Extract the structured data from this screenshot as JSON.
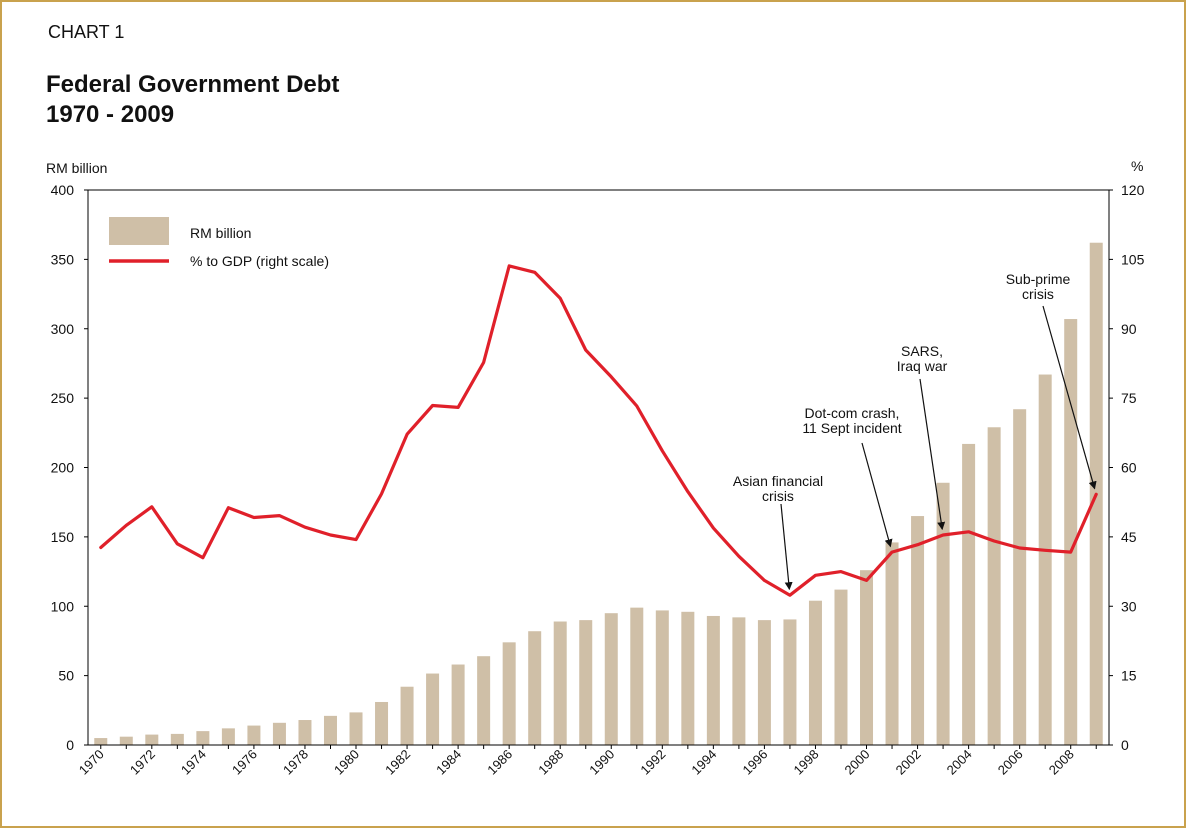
{
  "page": {
    "label": "CHART 1",
    "title_line1": "Federal Government Debt",
    "title_line2": "1970 - 2009"
  },
  "colors": {
    "bar": "#cfbfa7",
    "line": "#e0202a",
    "frame": "#c9a24d",
    "axis": "#000000",
    "text": "#111111"
  },
  "chart_data": {
    "type": "bar",
    "title": "Federal Government Debt 1970 - 2009",
    "categories": [
      1970,
      1971,
      1972,
      1973,
      1974,
      1975,
      1976,
      1977,
      1978,
      1979,
      1980,
      1981,
      1982,
      1983,
      1984,
      1985,
      1986,
      1987,
      1988,
      1989,
      1990,
      1991,
      1992,
      1993,
      1994,
      1995,
      1996,
      1997,
      1998,
      1999,
      2000,
      2001,
      2002,
      2003,
      2004,
      2005,
      2006,
      2007,
      2008,
      2009
    ],
    "x_tick_labels": [
      "1970",
      "1972",
      "1974",
      "1976",
      "1978",
      "1980",
      "1982",
      "1984",
      "1986",
      "1988",
      "1990",
      "1992",
      "1994",
      "1996",
      "1998",
      "2000",
      "2002",
      "2004",
      "2006",
      "2008"
    ],
    "ylabel_left": "RM billion",
    "ylabel_right": "%",
    "ylim_left": [
      0,
      400
    ],
    "ylim_right": [
      0,
      120
    ],
    "yticks_left": [
      0,
      50,
      100,
      150,
      200,
      250,
      300,
      350,
      400
    ],
    "yticks_right": [
      0,
      15,
      30,
      45,
      60,
      75,
      90,
      105,
      120
    ],
    "series": [
      {
        "name": "RM billion",
        "type": "bar",
        "axis": "left",
        "values": [
          5,
          6,
          7.5,
          8,
          10,
          12,
          14,
          16,
          18,
          21,
          23.5,
          31,
          42,
          51.5,
          58,
          64,
          74,
          82,
          89,
          90,
          95,
          99,
          97,
          96,
          93,
          92,
          90,
          90.5,
          104,
          112,
          126,
          146,
          165,
          189,
          217,
          229,
          242,
          267,
          307,
          362
        ]
      },
      {
        "name": "% to GDP (right scale)",
        "type": "line",
        "axis": "right",
        "values": [
          42.7,
          47.5,
          51.5,
          43.5,
          40.5,
          51.3,
          49.2,
          49.6,
          47.1,
          45.4,
          44.4,
          54.3,
          67.2,
          73.4,
          73.0,
          82.7,
          103.6,
          102.2,
          96.6,
          85.4,
          79.6,
          73.3,
          63.6,
          54.8,
          46.9,
          40.8,
          35.6,
          32.4,
          36.7,
          37.5,
          35.6,
          41.7,
          43.3,
          45.4,
          46.1,
          44.1,
          42.6,
          42.1,
          41.7,
          54.2
        ]
      }
    ],
    "legend": {
      "position": "top-left",
      "entries": [
        "RM billion",
        "% to GDP (right scale)"
      ]
    },
    "annotations": [
      {
        "id": "asian",
        "lines": [
          "Asian financial",
          "crisis"
        ],
        "x": 1997,
        "series": "line"
      },
      {
        "id": "dotcom",
        "lines": [
          "Dot-com crash,",
          "11 Sept incident"
        ],
        "x": 2001,
        "series": "line"
      },
      {
        "id": "sars",
        "lines": [
          "SARS,",
          "Iraq war"
        ],
        "x": 2003,
        "series": "line"
      },
      {
        "id": "subprime",
        "lines": [
          "Sub-prime",
          "crisis"
        ],
        "x": 2009,
        "series": "line"
      }
    ]
  }
}
